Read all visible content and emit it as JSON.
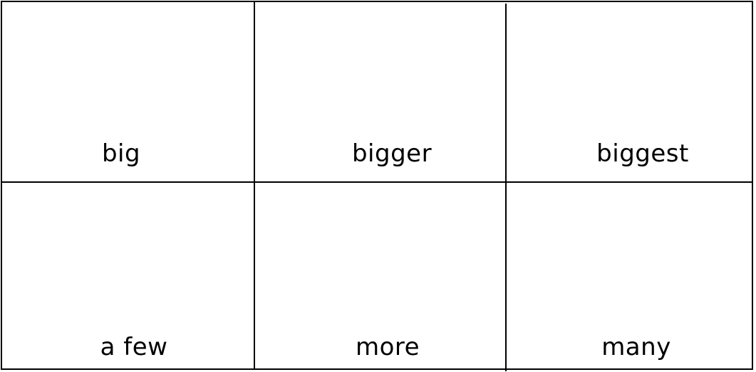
{
  "cards": [
    {
      "label": "big"
    },
    {
      "label": "bigger"
    },
    {
      "label": "biggest"
    },
    {
      "label": "a few"
    },
    {
      "label": "more"
    },
    {
      "label": "many"
    }
  ]
}
